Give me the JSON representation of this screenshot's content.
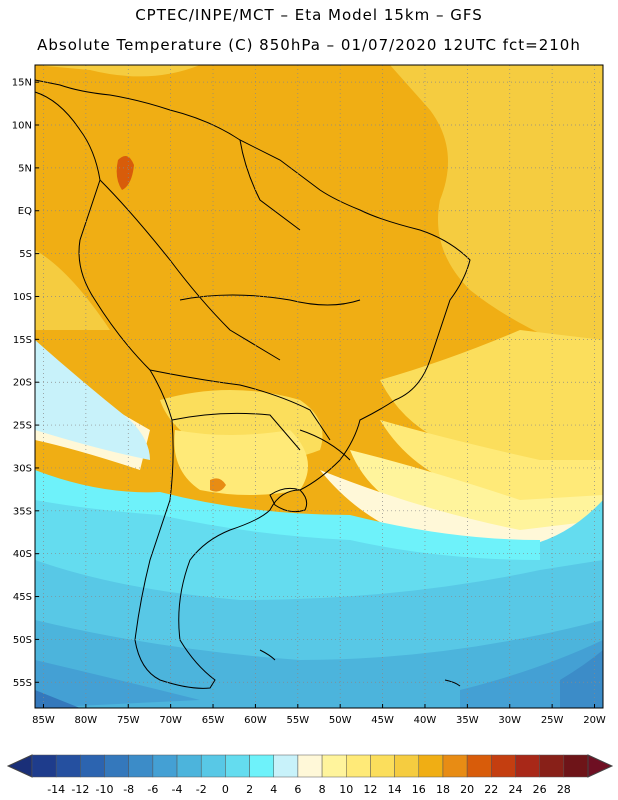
{
  "header": {
    "line1": "CPTEC/INPE/MCT –  Eta Model 15km – GFS",
    "line2": "Absolute Temperature (C) 850hPa – 01/07/2020 12UTC fct=210h"
  },
  "map": {
    "region": "South America",
    "lon_range": [
      -86,
      -19
    ],
    "lat_range": [
      17,
      -58
    ],
    "lat_ticks": [
      {
        "lat": 15,
        "label": "15N"
      },
      {
        "lat": 10,
        "label": "10N"
      },
      {
        "lat": 5,
        "label": "5N"
      },
      {
        "lat": 0,
        "label": "EQ"
      },
      {
        "lat": -5,
        "label": "5S"
      },
      {
        "lat": -10,
        "label": "10S"
      },
      {
        "lat": -15,
        "label": "15S"
      },
      {
        "lat": -20,
        "label": "20S"
      },
      {
        "lat": -25,
        "label": "25S"
      },
      {
        "lat": -30,
        "label": "30S"
      },
      {
        "lat": -35,
        "label": "35S"
      },
      {
        "lat": -40,
        "label": "40S"
      },
      {
        "lat": -45,
        "label": "45S"
      },
      {
        "lat": -50,
        "label": "50S"
      },
      {
        "lat": -55,
        "label": "55S"
      }
    ],
    "lon_ticks": [
      {
        "lon": -85,
        "label": "85W"
      },
      {
        "lon": -80,
        "label": "80W"
      },
      {
        "lon": -75,
        "label": "75W"
      },
      {
        "lon": -70,
        "label": "70W"
      },
      {
        "lon": -65,
        "label": "65W"
      },
      {
        "lon": -60,
        "label": "60W"
      },
      {
        "lon": -55,
        "label": "55W"
      },
      {
        "lon": -50,
        "label": "50W"
      },
      {
        "lon": -45,
        "label": "45W"
      },
      {
        "lon": -40,
        "label": "40W"
      },
      {
        "lon": -35,
        "label": "35W"
      },
      {
        "lon": -30,
        "label": "30W"
      },
      {
        "lon": -25,
        "label": "25W"
      },
      {
        "lon": -20,
        "label": "20W"
      }
    ],
    "gridlines": "dotted"
  },
  "colorbar": {
    "ticks": [
      "-14",
      "-12",
      "-10",
      "-8",
      "-6",
      "-4",
      "-2",
      "0",
      "2",
      "4",
      "6",
      "8",
      "10",
      "12",
      "14",
      "16",
      "18",
      "20",
      "22",
      "24",
      "26",
      "28"
    ],
    "low_color": "#1a2f78",
    "high_color": "#6e0f22",
    "colors": [
      "#1e3c8c",
      "#2550a0",
      "#2c64b0",
      "#3478bc",
      "#3c8cc8",
      "#44a0d4",
      "#4cb4dc",
      "#58c8e6",
      "#64dcef",
      "#6ef2fa",
      "#c8f2fa",
      "#fff8d8",
      "#fff49c",
      "#ffea78",
      "#fbde5c",
      "#f5cc40",
      "#f0ae14",
      "#e88c14",
      "#d85c0a",
      "#c43e10",
      "#a82818",
      "#882018",
      "#6e1418"
    ]
  }
}
